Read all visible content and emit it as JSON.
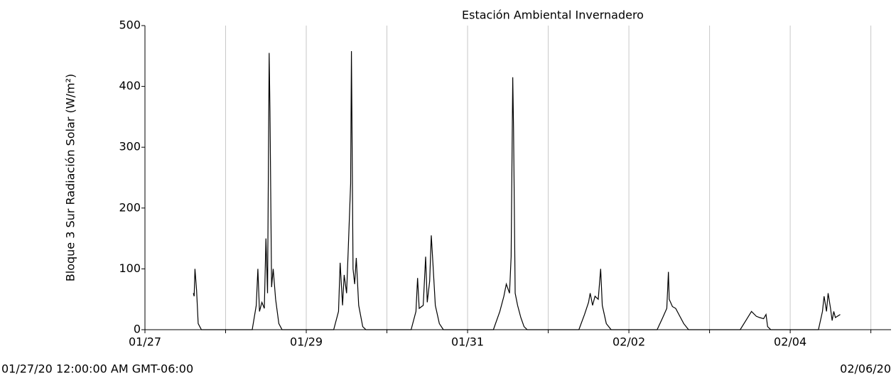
{
  "chart_data": {
    "type": "line",
    "title": "Estación Ambiental Invernadero",
    "ylabel": "Bloque 3 Sur Radiación Solar (W/m²)",
    "start_label": "01/27/20 12:00:00 AM GMT-06:00",
    "end_label": "02/06/20",
    "color": "#000000",
    "grid": true,
    "x": [
      0.6,
      0.61,
      0.62,
      0.64,
      0.66,
      0.7,
      1.33,
      1.38,
      1.4,
      1.42,
      1.45,
      1.48,
      1.5,
      1.52,
      1.54,
      1.55,
      1.57,
      1.59,
      1.62,
      1.66,
      1.7,
      2.34,
      2.4,
      2.42,
      2.45,
      2.47,
      2.5,
      2.52,
      2.55,
      2.56,
      2.58,
      2.6,
      2.62,
      2.65,
      2.7,
      2.74,
      3.3,
      3.36,
      3.38,
      3.4,
      3.45,
      3.48,
      3.5,
      3.53,
      3.55,
      3.57,
      3.6,
      3.65,
      3.7,
      4.32,
      4.4,
      4.45,
      4.48,
      4.52,
      4.54,
      4.56,
      4.57,
      4.59,
      4.62,
      4.66,
      4.7,
      4.74,
      5.38,
      5.45,
      5.5,
      5.52,
      5.55,
      5.58,
      5.62,
      5.65,
      5.67,
      5.72,
      5.78,
      6.35,
      6.42,
      6.47,
      6.49,
      6.5,
      6.54,
      6.58,
      6.62,
      6.68,
      6.74,
      7.38,
      7.45,
      7.52,
      7.58,
      7.62,
      7.67,
      7.7,
      7.72,
      7.76,
      8.35,
      8.4,
      8.42,
      8.45,
      8.47,
      8.5,
      8.52,
      8.54,
      8.56,
      8.62
    ],
    "values": [
      60,
      55,
      100,
      65,
      10,
      0,
      0,
      40,
      100,
      30,
      45,
      35,
      150,
      60,
      455,
      360,
      70,
      100,
      50,
      10,
      0,
      0,
      30,
      110,
      40,
      90,
      60,
      130,
      240,
      458,
      100,
      75,
      118,
      40,
      5,
      0,
      0,
      30,
      85,
      35,
      40,
      120,
      45,
      80,
      155,
      110,
      40,
      10,
      0,
      0,
      30,
      55,
      75,
      60,
      120,
      415,
      330,
      60,
      40,
      20,
      5,
      0,
      0,
      25,
      45,
      60,
      40,
      55,
      50,
      100,
      40,
      10,
      0,
      0,
      20,
      35,
      95,
      50,
      38,
      35,
      25,
      10,
      0,
      0,
      15,
      30,
      22,
      20,
      18,
      25,
      5,
      0,
      0,
      30,
      55,
      30,
      60,
      35,
      15,
      30,
      20,
      25
    ],
    "xlim": [
      0,
      9.25
    ],
    "xticks": [
      {
        "value": 0,
        "label": "01/27"
      },
      {
        "value": 2,
        "label": "01/29"
      },
      {
        "value": 4,
        "label": "01/31"
      },
      {
        "value": 6,
        "label": "02/02"
      },
      {
        "value": 8,
        "label": "02/04"
      }
    ],
    "x_minor_ticks": [
      1,
      3,
      5,
      7,
      9
    ],
    "ylim": [
      0,
      500
    ],
    "yticks": [
      0,
      100,
      200,
      300,
      400,
      500
    ]
  }
}
